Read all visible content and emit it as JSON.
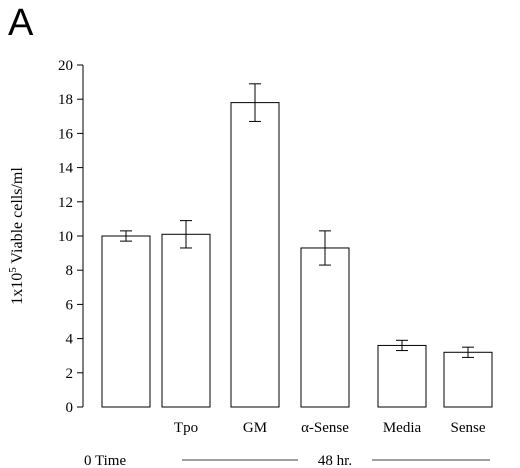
{
  "panel_label": "A",
  "chart_data": {
    "type": "bar",
    "categories": [
      "",
      "Tpo",
      "GM",
      "α-Sense",
      "Media",
      "Sense"
    ],
    "values": [
      10.0,
      10.1,
      17.8,
      9.3,
      3.6,
      3.2
    ],
    "errors": [
      0.3,
      0.8,
      1.1,
      1.0,
      0.3,
      0.3
    ],
    "ylabel_prefix": "1x10",
    "ylabel_exp": "5",
    "ylabel_suffix": " Viable cells/ml",
    "ylim": [
      0,
      20
    ],
    "yticks": [
      "0",
      "2",
      "4",
      "6",
      "8",
      "10",
      "12",
      "14",
      "16",
      "18",
      "20"
    ],
    "group_labels": {
      "time0": "0 Time",
      "time48": "48 hr."
    },
    "grid": false,
    "bar_fill": "#ffffff",
    "bar_stroke": "#000000"
  }
}
